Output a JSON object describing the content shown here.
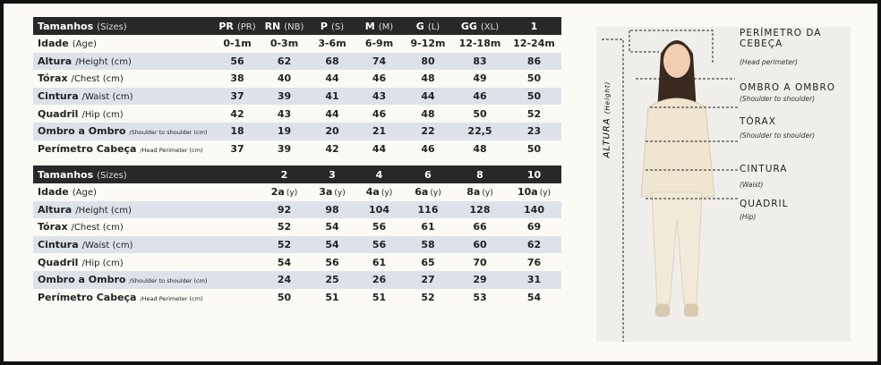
{
  "tables": [
    {
      "header": {
        "label": "Tamanhos",
        "sub": "(Sizes)",
        "columns": [
          {
            "label": "PR",
            "sub": "(PR)"
          },
          {
            "label": "RN",
            "sub": "(NB)"
          },
          {
            "label": "P",
            "sub": "(S)"
          },
          {
            "label": "M",
            "sub": "(M)"
          },
          {
            "label": "G",
            "sub": "(L)"
          },
          {
            "label": "GG",
            "sub": "(XL)"
          },
          {
            "label": "1"
          }
        ]
      },
      "age": {
        "label": "Idade",
        "sub": "(Age)",
        "values": [
          "0-1m",
          "0-3m",
          "3-6m",
          "6-9m",
          "9-12m",
          "12-18m",
          "12-24m"
        ]
      },
      "rows": [
        {
          "label": "Altura",
          "sub": "/Height (cm)",
          "values": [
            "56",
            "62",
            "68",
            "74",
            "80",
            "83",
            "86"
          ]
        },
        {
          "label": "Tórax",
          "sub": "/Chest (cm)",
          "values": [
            "38",
            "40",
            "44",
            "46",
            "48",
            "49",
            "50"
          ]
        },
        {
          "label": "Cintura",
          "sub": "/Waist (cm)",
          "values": [
            "37",
            "39",
            "41",
            "43",
            "44",
            "46",
            "50"
          ]
        },
        {
          "label": "Quadril",
          "sub": "/Hip (cm)",
          "values": [
            "42",
            "43",
            "44",
            "46",
            "48",
            "50",
            "52"
          ]
        },
        {
          "label": "Ombro a Ombro",
          "sub": "/Shoulder to shoulder (cm)",
          "small": true,
          "values": [
            "18",
            "19",
            "20",
            "21",
            "22",
            "22,5",
            "23"
          ]
        },
        {
          "label": "Perímetro Cabeça",
          "sub": "/Head Perimeter (cm)",
          "small": true,
          "values": [
            "37",
            "39",
            "42",
            "44",
            "46",
            "48",
            "50"
          ]
        }
      ]
    },
    {
      "header": {
        "label": "Tamanhos",
        "sub": "(Sizes)",
        "columns": [
          {
            "label": "2"
          },
          {
            "label": "3"
          },
          {
            "label": "4"
          },
          {
            "label": "6"
          },
          {
            "label": "8"
          },
          {
            "label": "10"
          }
        ]
      },
      "age": {
        "label": "Idade",
        "sub": "(Age)",
        "values": [
          "2a",
          "3a",
          "4a",
          "6a",
          "8a",
          "10a"
        ],
        "value_subs": [
          "(y)",
          "(y)",
          "(y)",
          "(y)",
          "(y)",
          "(y)"
        ]
      },
      "rows": [
        {
          "label": "Altura",
          "sub": "/Height (cm)",
          "values": [
            "92",
            "98",
            "104",
            "116",
            "128",
            "140"
          ]
        },
        {
          "label": "Tórax",
          "sub": "/Chest (cm)",
          "values": [
            "52",
            "54",
            "56",
            "61",
            "66",
            "69"
          ]
        },
        {
          "label": "Cintura",
          "sub": "/Waist (cm)",
          "values": [
            "52",
            "54",
            "56",
            "58",
            "60",
            "62"
          ]
        },
        {
          "label": "Quadril",
          "sub": "/Hip (cm)",
          "values": [
            "54",
            "56",
            "61",
            "65",
            "70",
            "76"
          ]
        },
        {
          "label": "Ombro a Ombro",
          "sub": "/Shoulder to shoulder (cm)",
          "small": true,
          "values": [
            "24",
            "25",
            "26",
            "27",
            "29",
            "31"
          ]
        },
        {
          "label": "Perímetro Cabeça",
          "sub": "/Head Perimeter (cm)",
          "small": true,
          "values": [
            "50",
            "51",
            "51",
            "52",
            "53",
            "54"
          ]
        }
      ]
    }
  ],
  "figure": {
    "height": {
      "label": "ALTURA",
      "sub": "(Height)"
    },
    "measures": [
      {
        "label": "PERÍMETRO DA CEBEÇA",
        "sub": "(Head perimeter)"
      },
      {
        "label": "OMBRO A OMBRO",
        "sub": "(Shoulder to shoulder)"
      },
      {
        "label": "TÓRAX",
        "sub": "(Shoulder to shoulder)"
      },
      {
        "label": "CINTURA",
        "sub": "(Waist)"
      },
      {
        "label": "QUADRIL",
        "sub": "(Hip)"
      }
    ]
  }
}
